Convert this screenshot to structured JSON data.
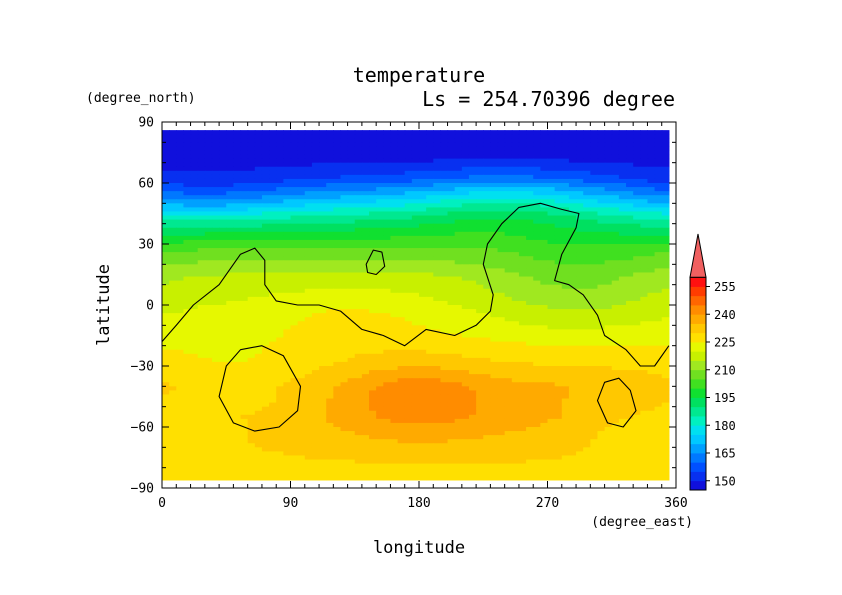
{
  "chart_data": {
    "type": "heatmap",
    "title": "temperature",
    "subtitle": "Ls = 254.70396 degree",
    "xlabel": "longitude",
    "ylabel": "latitude",
    "x_units": "(degree_east)",
    "y_units": "(degree_north)",
    "xlim": [
      0,
      360
    ],
    "ylim": [
      -90,
      90
    ],
    "data_extent": {
      "lon": [
        0,
        355
      ],
      "lat": [
        -86,
        86
      ]
    },
    "x_ticks": [
      0,
      90,
      180,
      270,
      360
    ],
    "y_ticks": [
      -90,
      -60,
      -30,
      0,
      30,
      60,
      90
    ],
    "x_tick_labels": [
      "0",
      "90",
      "180",
      "270",
      "360"
    ],
    "y_tick_labels": [
      "−90",
      "−60",
      "−30",
      "0",
      "30",
      "60",
      "90"
    ],
    "colorbar": {
      "labels": [
        "150",
        "165",
        "180",
        "195",
        "210",
        "225",
        "240",
        "255"
      ],
      "levels": [
        145,
        150,
        155,
        160,
        165,
        170,
        175,
        180,
        185,
        190,
        195,
        200,
        205,
        210,
        215,
        220,
        225,
        230,
        235,
        240,
        245,
        250,
        255,
        260
      ],
      "colors": [
        "#1010dc",
        "#0830f0",
        "#0050ff",
        "#0078ff",
        "#00a0ff",
        "#00c8ff",
        "#00e0f0",
        "#00f0c0",
        "#00e890",
        "#00e060",
        "#10e030",
        "#40e020",
        "#70e020",
        "#a0e820",
        "#c8f000",
        "#e6f800",
        "#ffe000",
        "#ffc800",
        "#ffaa00",
        "#ff8c00",
        "#ff6600",
        "#ff3c00",
        "#ff1010",
        "#f06060"
      ],
      "extend": "max"
    },
    "field_model": {
      "bands": [
        {
          "lat": 86,
          "value": 146
        },
        {
          "lat": 72,
          "value": 148
        },
        {
          "lat": 62,
          "value": 156
        },
        {
          "lat": 52,
          "value": 172
        },
        {
          "lat": 44,
          "value": 186
        },
        {
          "lat": 36,
          "value": 196
        },
        {
          "lat": 26,
          "value": 207
        },
        {
          "lat": 14,
          "value": 216
        },
        {
          "lat": 2,
          "value": 220
        },
        {
          "lat": -12,
          "value": 224
        },
        {
          "lat": -28,
          "value": 230
        },
        {
          "lat": -40,
          "value": 236
        },
        {
          "lat": -55,
          "value": 237
        },
        {
          "lat": -70,
          "value": 233
        },
        {
          "lat": -80,
          "value": 229
        },
        {
          "lat": -86,
          "value": 226
        }
      ],
      "anomalies": [
        {
          "lon": 30,
          "lat": 52,
          "dlon": 45,
          "dlat": 10,
          "amp": -8
        },
        {
          "lon": 240,
          "lat": 50,
          "dlon": 45,
          "dlat": 12,
          "amp": 10
        },
        {
          "lon": 50,
          "lat": -45,
          "dlon": 45,
          "dlat": 18,
          "amp": -8
        },
        {
          "lon": 180,
          "lat": -45,
          "dlon": 32,
          "dlat": 12,
          "amp": 8
        },
        {
          "lon": 290,
          "lat": 10,
          "dlon": 45,
          "dlat": 18,
          "amp": -8
        },
        {
          "lon": 130,
          "lat": -5,
          "dlon": 40,
          "dlat": 12,
          "amp": 4
        },
        {
          "lon": 330,
          "lat": -60,
          "dlon": 35,
          "dlat": 12,
          "amp": -6
        }
      ]
    },
    "contour_lines": [
      {
        "closed": false,
        "points": [
          [
            0,
            -18
          ],
          [
            10,
            -10
          ],
          [
            22,
            0
          ],
          [
            40,
            10
          ],
          [
            55,
            25
          ],
          [
            65,
            28
          ],
          [
            72,
            22
          ],
          [
            72,
            10
          ],
          [
            80,
            2
          ],
          [
            95,
            0
          ],
          [
            110,
            0
          ],
          [
            125,
            -3
          ],
          [
            140,
            -12
          ],
          [
            155,
            -15
          ],
          [
            170,
            -20
          ],
          [
            185,
            -12
          ],
          [
            205,
            -15
          ],
          [
            220,
            -10
          ],
          [
            230,
            -3
          ],
          [
            232,
            5
          ],
          [
            225,
            20
          ],
          [
            228,
            30
          ],
          [
            238,
            40
          ],
          [
            250,
            48
          ],
          [
            265,
            50
          ],
          [
            280,
            47
          ],
          [
            292,
            45
          ],
          [
            290,
            38
          ],
          [
            280,
            25
          ],
          [
            275,
            12
          ],
          [
            285,
            10
          ],
          [
            295,
            5
          ],
          [
            305,
            -5
          ],
          [
            310,
            -15
          ],
          [
            325,
            -22
          ],
          [
            335,
            -30
          ],
          [
            345,
            -30
          ],
          [
            355,
            -20
          ]
        ]
      },
      {
        "closed": true,
        "points": [
          [
            143,
            20
          ],
          [
            148,
            27
          ],
          [
            154,
            26
          ],
          [
            156,
            19
          ],
          [
            150,
            15
          ],
          [
            144,
            16
          ]
        ]
      },
      {
        "closed": true,
        "points": [
          [
            40,
            -45
          ],
          [
            45,
            -30
          ],
          [
            55,
            -22
          ],
          [
            70,
            -20
          ],
          [
            85,
            -25
          ],
          [
            97,
            -40
          ],
          [
            95,
            -52
          ],
          [
            82,
            -60
          ],
          [
            65,
            -62
          ],
          [
            50,
            -58
          ]
        ]
      },
      {
        "closed": true,
        "points": [
          [
            305,
            -47
          ],
          [
            310,
            -38
          ],
          [
            320,
            -36
          ],
          [
            328,
            -42
          ],
          [
            332,
            -52
          ],
          [
            323,
            -60
          ],
          [
            312,
            -58
          ]
        ]
      }
    ]
  }
}
